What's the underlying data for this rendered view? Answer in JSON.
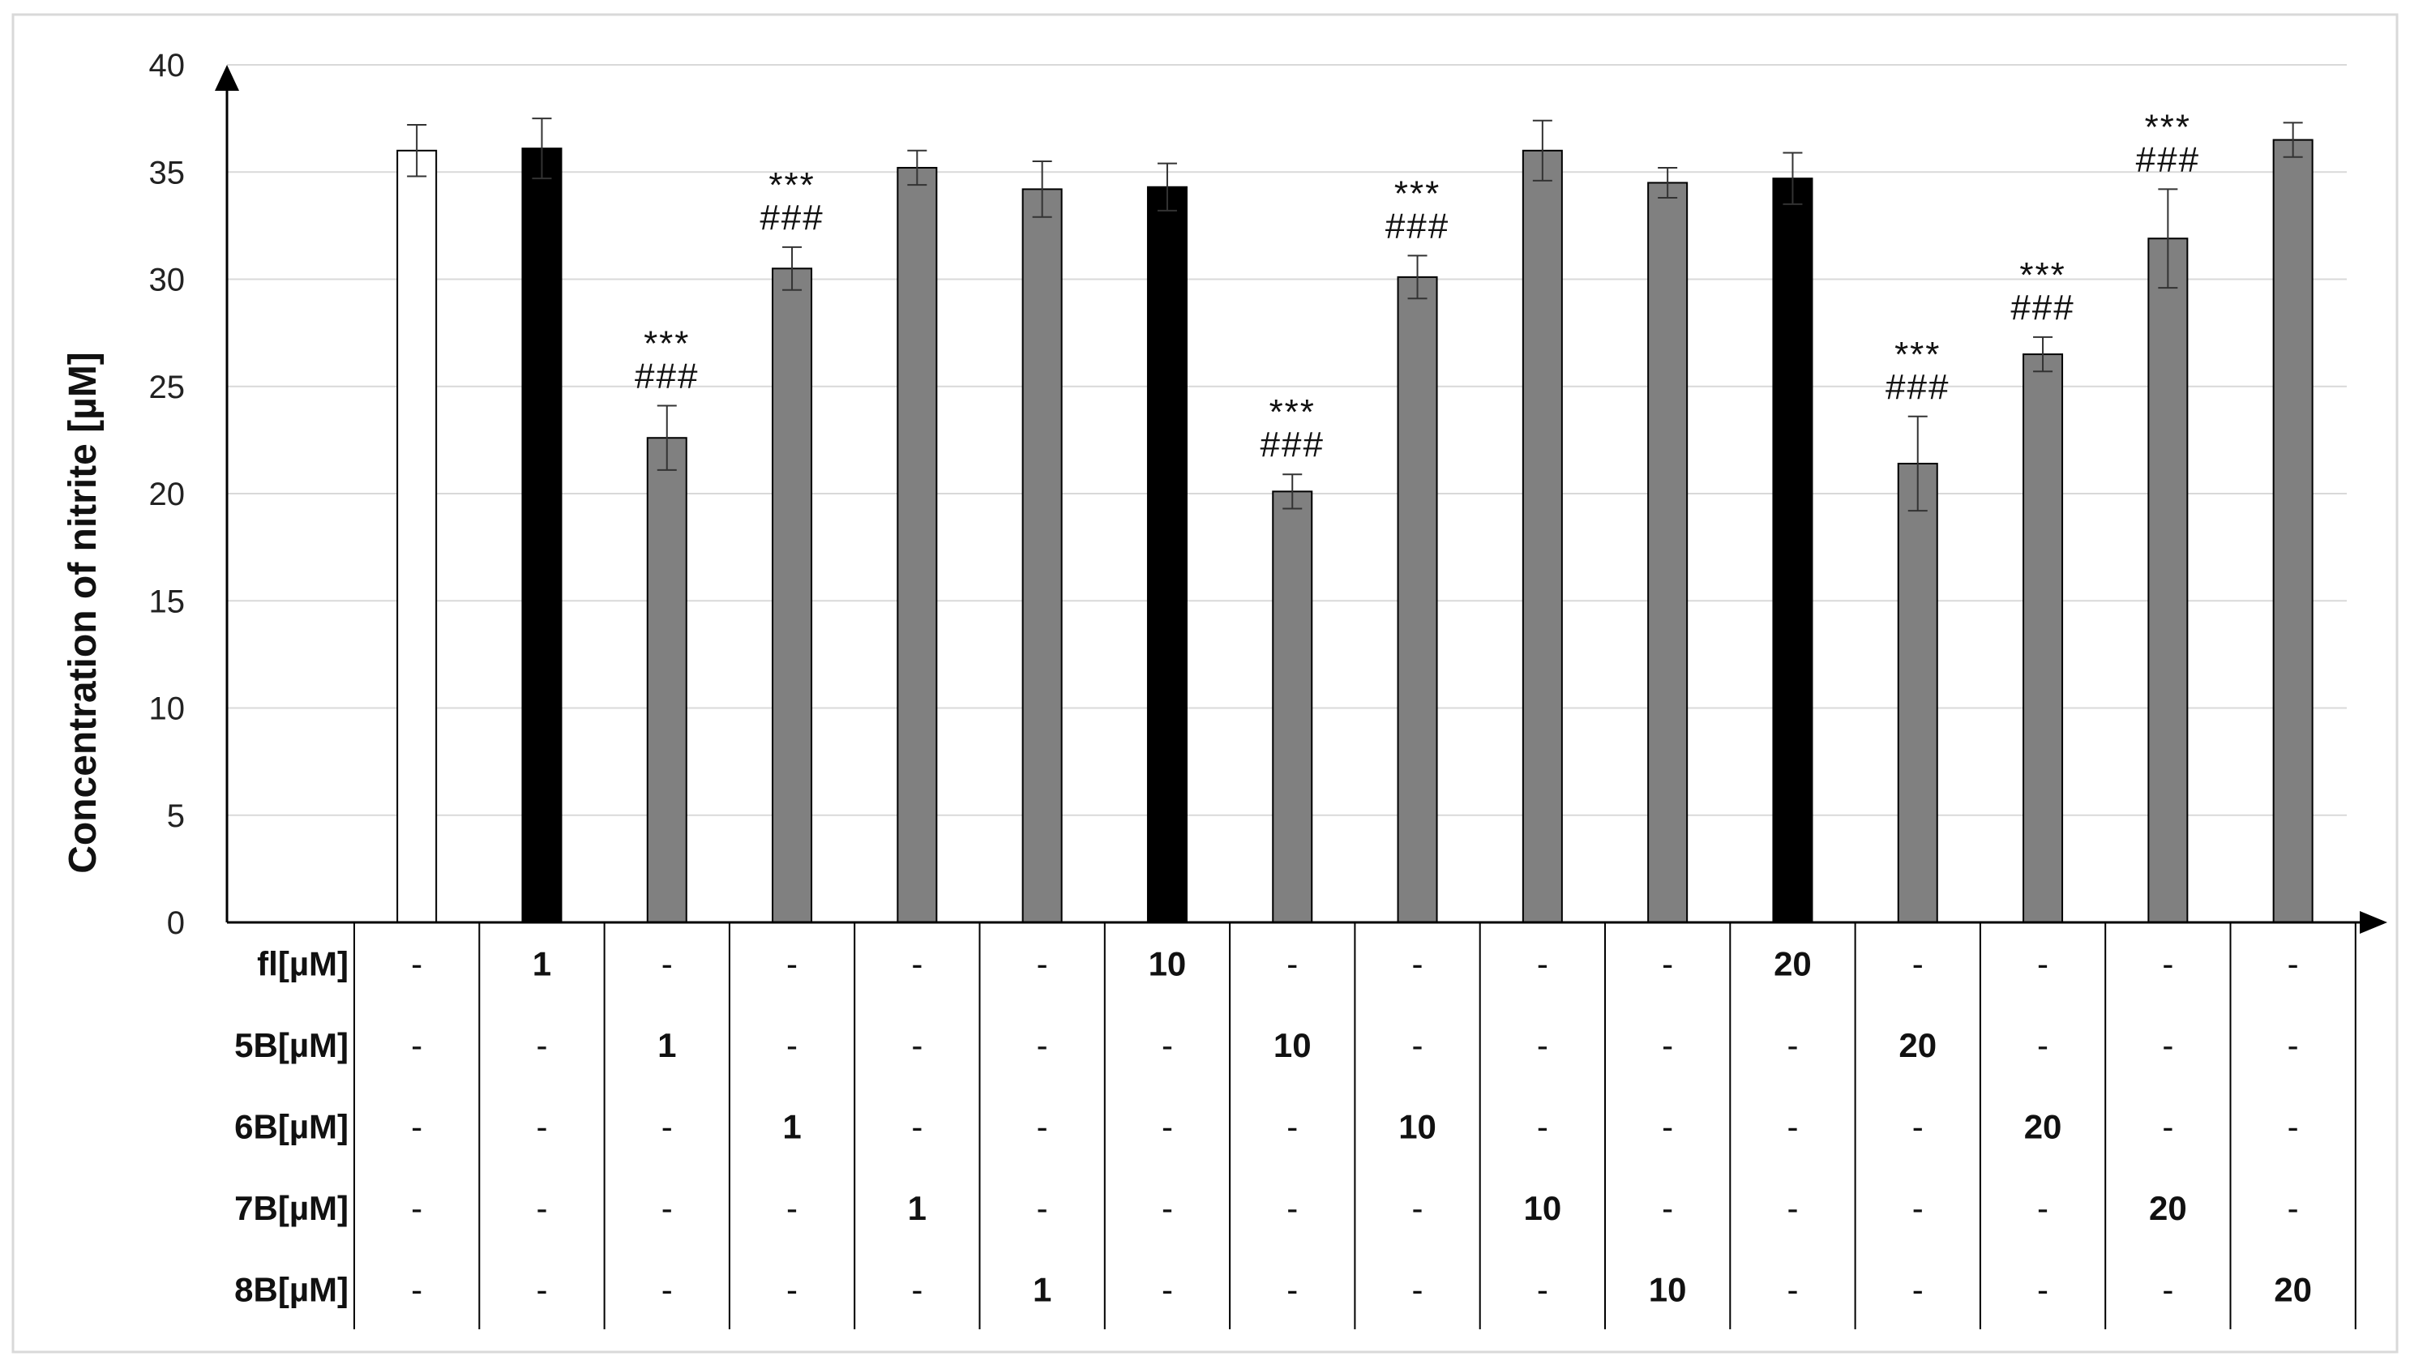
{
  "chart_data": {
    "type": "bar",
    "ylabel": "Concentration of nitrite [µM]",
    "ylim": [
      0,
      40
    ],
    "yticks": [
      0,
      5,
      10,
      15,
      20,
      25,
      30,
      35,
      40
    ],
    "grid": true,
    "bars": [
      {
        "value": 36.0,
        "error": 1.2,
        "color": "#ffffff",
        "sig_top": "",
        "sig_bottom": ""
      },
      {
        "value": 36.1,
        "error": 1.4,
        "color": "#000000",
        "sig_top": "",
        "sig_bottom": ""
      },
      {
        "value": 22.6,
        "error": 1.5,
        "color": "#808080",
        "sig_top": "***",
        "sig_bottom": "###"
      },
      {
        "value": 30.5,
        "error": 1.0,
        "color": "#808080",
        "sig_top": "***",
        "sig_bottom": "###"
      },
      {
        "value": 35.2,
        "error": 0.8,
        "color": "#808080",
        "sig_top": "",
        "sig_bottom": ""
      },
      {
        "value": 34.2,
        "error": 1.3,
        "color": "#808080",
        "sig_top": "",
        "sig_bottom": ""
      },
      {
        "value": 34.3,
        "error": 1.1,
        "color": "#000000",
        "sig_top": "",
        "sig_bottom": ""
      },
      {
        "value": 20.1,
        "error": 0.8,
        "color": "#808080",
        "sig_top": "***",
        "sig_bottom": "###"
      },
      {
        "value": 30.1,
        "error": 1.0,
        "color": "#808080",
        "sig_top": "***",
        "sig_bottom": "###"
      },
      {
        "value": 36.0,
        "error": 1.4,
        "color": "#808080",
        "sig_top": "",
        "sig_bottom": ""
      },
      {
        "value": 34.5,
        "error": 0.7,
        "color": "#808080",
        "sig_top": "",
        "sig_bottom": ""
      },
      {
        "value": 34.7,
        "error": 1.2,
        "color": "#000000",
        "sig_top": "",
        "sig_bottom": ""
      },
      {
        "value": 21.4,
        "error": 2.2,
        "color": "#808080",
        "sig_top": "***",
        "sig_bottom": "###"
      },
      {
        "value": 26.5,
        "error": 0.8,
        "color": "#808080",
        "sig_top": "***",
        "sig_bottom": "###"
      },
      {
        "value": 31.9,
        "error": 2.3,
        "color": "#808080",
        "sig_top": "***",
        "sig_bottom": "###"
      },
      {
        "value": 36.5,
        "error": 0.8,
        "color": "#808080",
        "sig_top": "",
        "sig_bottom": ""
      }
    ],
    "table": {
      "rows": [
        {
          "label": "fl[µM]",
          "cells": [
            "-",
            "1",
            "-",
            "-",
            "-",
            "-",
            "10",
            "-",
            "-",
            "-",
            "-",
            "20",
            "-",
            "-",
            "-",
            "-"
          ]
        },
        {
          "label": "5B[µM]",
          "cells": [
            "-",
            "-",
            "1",
            "-",
            "-",
            "-",
            "-",
            "10",
            "-",
            "-",
            "-",
            "-",
            "20",
            "-",
            "-",
            "-"
          ]
        },
        {
          "label": "6B[µM]",
          "cells": [
            "-",
            "-",
            "-",
            "1",
            "-",
            "-",
            "-",
            "-",
            "10",
            "-",
            "-",
            "-",
            "-",
            "20",
            "-",
            "-"
          ]
        },
        {
          "label": "7B[µM]",
          "cells": [
            "-",
            "-",
            "-",
            "-",
            "1",
            "-",
            "-",
            "-",
            "-",
            "10",
            "-",
            "-",
            "-",
            "-",
            "20",
            "-"
          ]
        },
        {
          "label": "8B[µM]",
          "cells": [
            "-",
            "-",
            "-",
            "-",
            "-",
            "1",
            "-",
            "-",
            "-",
            "-",
            "10",
            "-",
            "-",
            "-",
            "-",
            "20"
          ]
        }
      ]
    }
  }
}
